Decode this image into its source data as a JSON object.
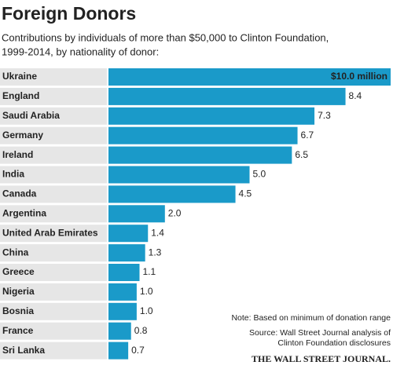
{
  "chart_data": {
    "type": "bar",
    "orientation": "horizontal",
    "title": "Foreign Donors",
    "subtitle": [
      "Contributions by individuals of more than $50,000 to Clinton Foundation,",
      "1999-2014, by nationality of donor:"
    ],
    "categories": [
      "Ukraine",
      "England",
      "Saudi Arabia",
      "Germany",
      "Ireland",
      "India",
      "Canada",
      "Argentina",
      "United Arab Emirates",
      "China",
      "Greece",
      "Nigeria",
      "Bosnia",
      "France",
      "Sri Lanka"
    ],
    "values": [
      10,
      8.4,
      7.3,
      6.7,
      6.5,
      5,
      4.5,
      2,
      1.4,
      1.3,
      1.1,
      1,
      1,
      0.8,
      0.7
    ],
    "value_labels": [
      "$10.0 million",
      "8.4",
      "7.3",
      "6.7",
      "6.5",
      "5.0",
      "4.5",
      "2.0",
      "1.4",
      "1.3",
      "1.1",
      "1.0",
      "1.0",
      "0.8",
      "0.7"
    ],
    "color": "#1a9ac9",
    "xlim": [
      0,
      10
    ],
    "notes": [
      "Note: Based on minimum of donation range",
      "Source: Wall Street Journal analysis of",
      "Clinton Foundation disclosures"
    ],
    "source_logo": "THE WALL STREET JOURNAL."
  }
}
